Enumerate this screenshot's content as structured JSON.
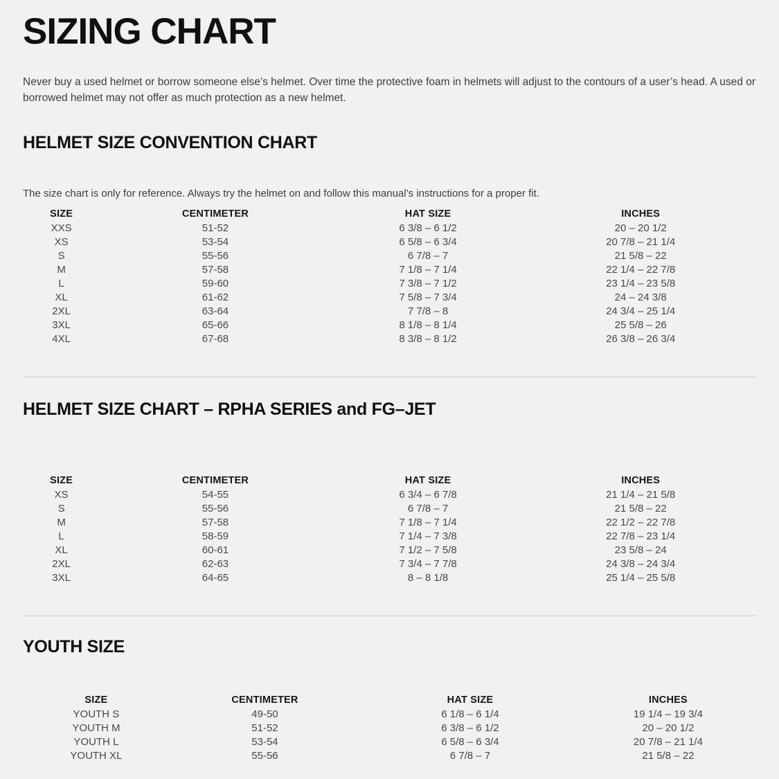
{
  "page": {
    "title": "SIZING CHART",
    "intro": "Never buy a used helmet or borrow someone else’s helmet. Over time the protective foam in helmets will adjust to the contours of a user’s head. A used or borrowed helmet may not offer as much protection as a new helmet."
  },
  "colors": {
    "background": "#f1f1f2",
    "heading": "#101010",
    "body_text": "#3d3d3d",
    "table_text": "#474747",
    "divider": "#c9c9c9"
  },
  "sections": [
    {
      "heading": "HELMET SIZE CONVENTION CHART",
      "note": "The size chart is only for reference. Always try the helmet on and follow this manual’s instructions for a proper fit.",
      "columns": [
        "SIZE",
        "CENTIMETER",
        "HAT SIZE",
        "INCHES"
      ],
      "rows": [
        [
          "XXS",
          "51-52",
          "6 3/8 – 6 1/2",
          "20 – 20 1/2"
        ],
        [
          "XS",
          "53-54",
          "6 5/8 – 6 3/4",
          "20 7/8 – 21 1/4"
        ],
        [
          "S",
          "55-56",
          "6 7/8 – 7",
          "21 5/8 – 22"
        ],
        [
          "M",
          "57-58",
          "7 1/8 – 7 1/4",
          "22 1/4 – 22 7/8"
        ],
        [
          "L",
          "59-60",
          "7 3/8 – 7 1/2",
          "23 1/4 – 23 5/8"
        ],
        [
          "XL",
          "61-62",
          "7 5/8 – 7 3/4",
          "24 – 24 3/8"
        ],
        [
          "2XL",
          "63-64",
          "7 7/8 – 8",
          "24 3/4 – 25 1/4"
        ],
        [
          "3XL",
          "65-66",
          "8 1/8 – 8 1/4",
          "25 5/8 – 26"
        ],
        [
          "4XL",
          "67-68",
          "8 3/8 – 8 1/2",
          "26 3/8 – 26 3/4"
        ]
      ]
    },
    {
      "heading": "HELMET SIZE CHART – RPHA SERIES and FG–JET",
      "columns": [
        "SIZE",
        "CENTIMETER",
        "HAT SIZE",
        "INCHES"
      ],
      "rows": [
        [
          "XS",
          "54-55",
          "6 3/4 – 6 7/8",
          "21 1/4 – 21 5/8"
        ],
        [
          "S",
          "55-56",
          "6 7/8 – 7",
          "21 5/8 – 22"
        ],
        [
          "M",
          "57-58",
          "7 1/8 – 7 1/4",
          "22 1/2 – 22 7/8"
        ],
        [
          "L",
          "58-59",
          "7 1/4 – 7 3/8",
          "22 7/8 – 23 1/4"
        ],
        [
          "XL",
          "60-61",
          "7 1/2 – 7 5/8",
          "23 5/8 – 24"
        ],
        [
          "2XL",
          "62-63",
          "7 3/4 – 7 7/8",
          "24 3/8 – 24 3/4"
        ],
        [
          "3XL",
          "64-65",
          "8 – 8 1/8",
          "25 1/4 – 25 5/8"
        ]
      ]
    },
    {
      "heading": "YOUTH SIZE",
      "columns": [
        "SIZE",
        "CENTIMETER",
        "HAT SIZE",
        "INCHES"
      ],
      "rows": [
        [
          "YOUTH S",
          "49-50",
          "6 1/8 – 6 1/4",
          "19 1/4 – 19 3/4"
        ],
        [
          "YOUTH M",
          "51-52",
          "6 3/8 – 6 1/2",
          "20 – 20 1/2"
        ],
        [
          "YOUTH L",
          "53-54",
          "6 5/8 – 6 3/4",
          "20 7/8 – 21 1/4"
        ],
        [
          "YOUTH XL",
          "55-56",
          "6 7/8 – 7",
          "21 5/8 – 22"
        ]
      ]
    }
  ]
}
